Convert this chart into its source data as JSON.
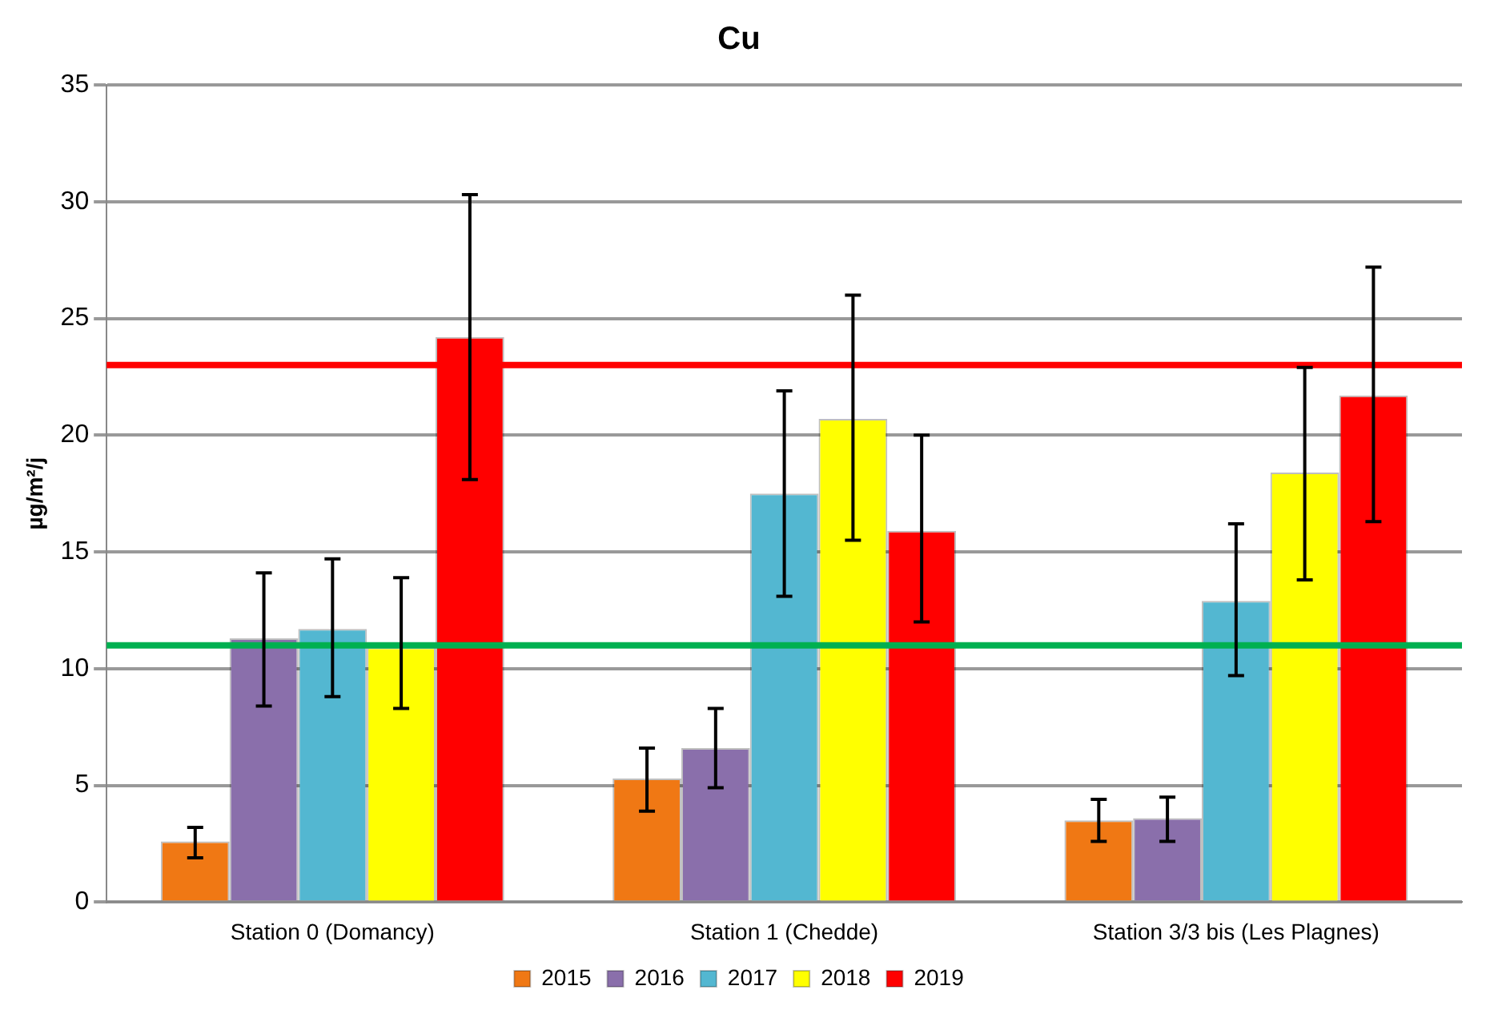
{
  "chart_data": {
    "type": "bar",
    "title": "Cu",
    "ylabel": "µg/m²/j",
    "categories": [
      "Station 0 (Domancy)",
      "Station 1 (Chedde)",
      "Station 3/3 bis (Les Plagnes)"
    ],
    "series": [
      {
        "name": "2015",
        "color": "#f07814",
        "values": [
          2.6,
          5.3,
          3.5
        ],
        "errors": [
          [
            1.9,
            3.2
          ],
          [
            3.9,
            6.6
          ],
          [
            2.6,
            4.4
          ]
        ]
      },
      {
        "name": "2016",
        "color": "#8a6fab",
        "values": [
          11.3,
          6.6,
          3.6
        ],
        "errors": [
          [
            8.4,
            14.1
          ],
          [
            4.9,
            8.3
          ],
          [
            2.6,
            4.5
          ]
        ]
      },
      {
        "name": "2017",
        "color": "#53b7d1",
        "values": [
          11.7,
          17.5,
          12.9
        ],
        "errors": [
          [
            8.8,
            14.7
          ],
          [
            13.1,
            21.9
          ],
          [
            9.7,
            16.2
          ]
        ]
      },
      {
        "name": "2018",
        "color": "#ffff00",
        "values": [
          10.9,
          20.7,
          18.4
        ],
        "errors": [
          [
            8.3,
            13.9
          ],
          [
            15.5,
            26.0
          ],
          [
            13.8,
            22.9
          ]
        ]
      },
      {
        "name": "2019",
        "color": "#ff0000",
        "values": [
          24.2,
          15.9,
          21.7
        ],
        "errors": [
          [
            18.1,
            30.3
          ],
          [
            12.0,
            20.0
          ],
          [
            16.3,
            27.2
          ]
        ]
      }
    ],
    "ylim": [
      0,
      35
    ],
    "yticks": [
      0,
      5,
      10,
      15,
      20,
      25,
      30,
      35
    ],
    "grid": "y",
    "legend": "bottom",
    "ref_lines": [
      {
        "axis": "y",
        "value": 23,
        "color": "#ff0000"
      },
      {
        "axis": "y",
        "value": 11,
        "color": "#00b050"
      }
    ]
  }
}
